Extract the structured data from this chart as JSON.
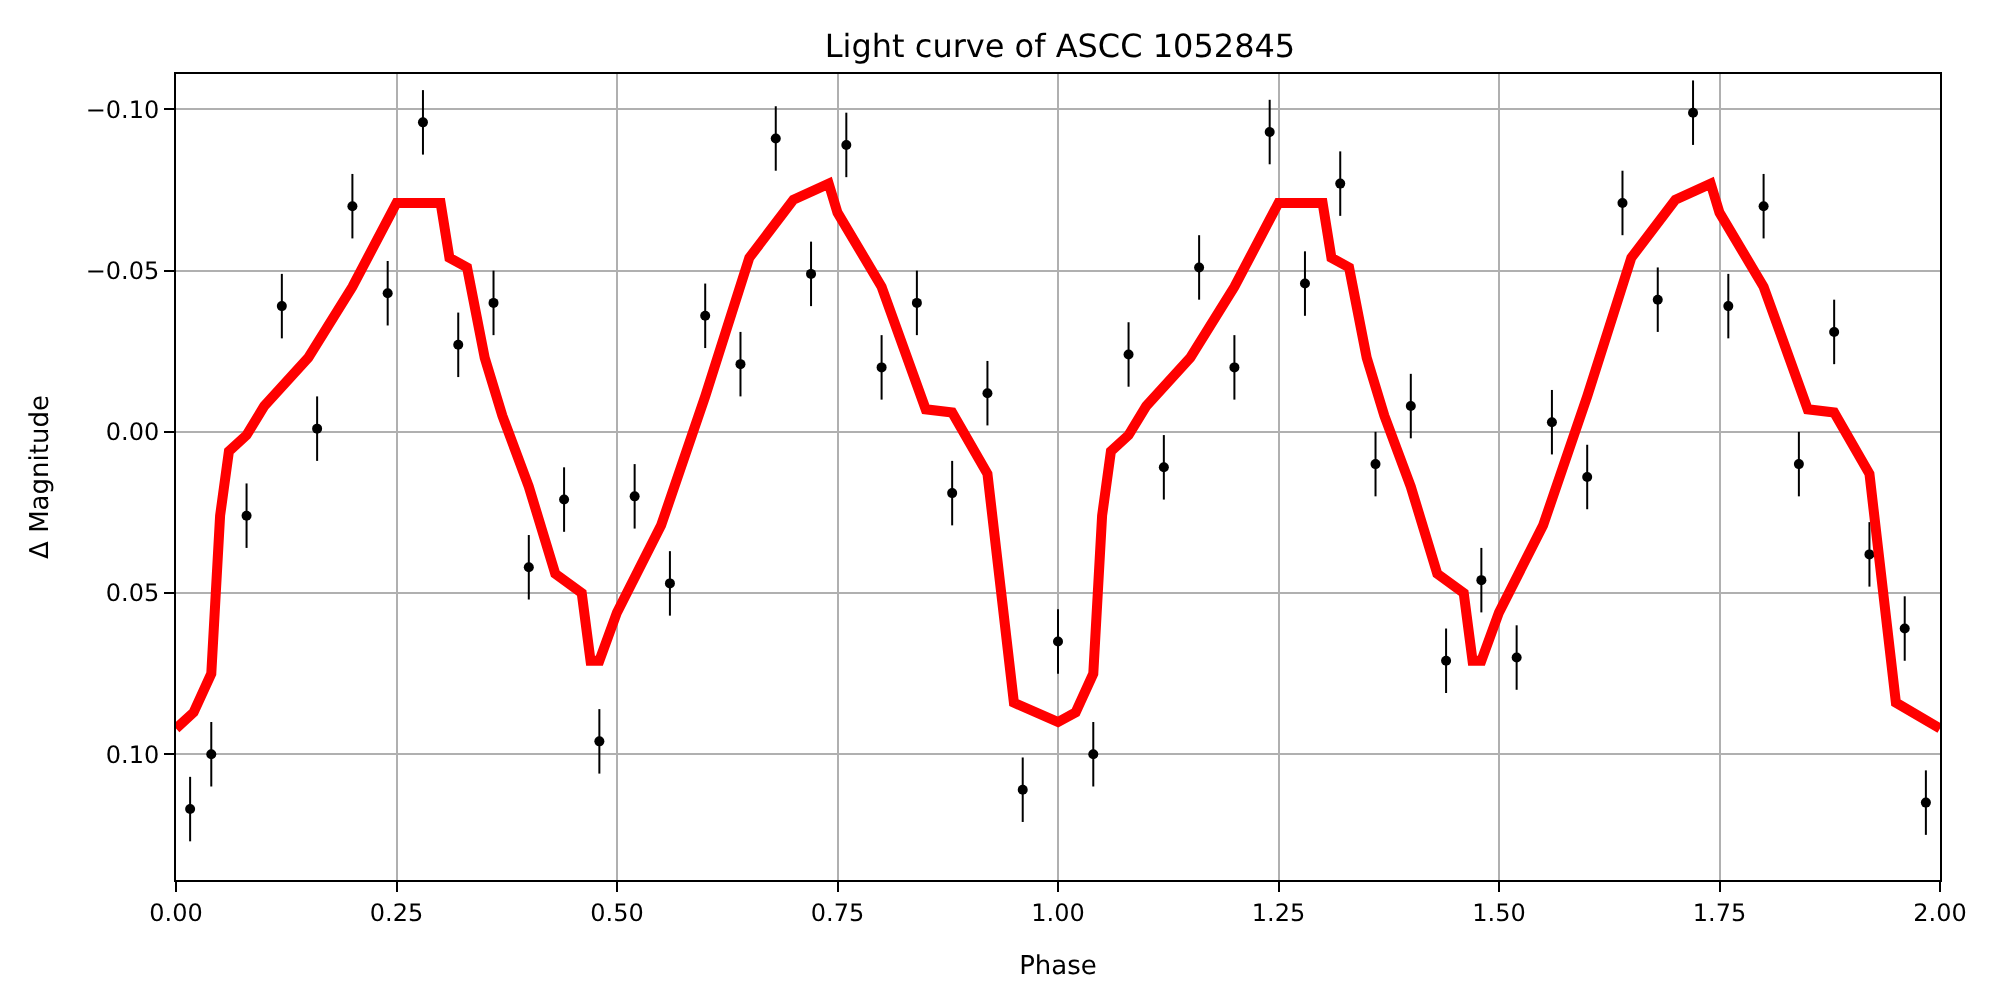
{
  "chart_data": {
    "type": "scatter",
    "title": "Light curve of ASCC 1052845",
    "xlabel": "Phase",
    "ylabel": "Δ Magnitude",
    "xlim": [
      0,
      2
    ],
    "ylim": [
      0.139,
      -0.111
    ],
    "xticks": [
      {
        "value": 0,
        "label": "0.00"
      },
      {
        "value": 0.25,
        "label": "0.25"
      },
      {
        "value": 0.5,
        "label": "0.50"
      },
      {
        "value": 0.75,
        "label": "0.75"
      },
      {
        "value": 1,
        "label": "1.00"
      },
      {
        "value": 1.25,
        "label": "1.25"
      },
      {
        "value": 1.5,
        "label": "1.50"
      },
      {
        "value": 1.75,
        "label": "1.75"
      },
      {
        "value": 2,
        "label": "2.00"
      }
    ],
    "yticks": [
      {
        "value": -0.1,
        "label": "−0.10"
      },
      {
        "value": -0.05,
        "label": "−0.05"
      },
      {
        "value": 0,
        "label": "0.00"
      },
      {
        "value": 0.05,
        "label": "0.05"
      },
      {
        "value": 0.1,
        "label": "0.10"
      }
    ],
    "grid": true,
    "series": [
      {
        "color": "#000000",
        "marker": "circle",
        "x": [
          0.016,
          0.04,
          0.08,
          0.12,
          0.16,
          0.2,
          0.24,
          0.28,
          0.32,
          0.36,
          0.4,
          0.44,
          0.48,
          0.52,
          0.56,
          0.6,
          0.64,
          0.68,
          0.72,
          0.76,
          0.8,
          0.84,
          0.88,
          0.92,
          0.96,
          1.0,
          1.04,
          1.08,
          1.12,
          1.16,
          1.2,
          1.24,
          1.28,
          1.32,
          1.36,
          1.4,
          1.44,
          1.48,
          1.52,
          1.56,
          1.6,
          1.64,
          1.68,
          1.72,
          1.76,
          1.8,
          1.84,
          1.88,
          1.92,
          1.96,
          1.984
        ],
        "values": [
          0.117,
          0.1,
          0.026,
          -0.039,
          -0.001,
          -0.07,
          -0.043,
          -0.096,
          -0.027,
          -0.04,
          0.042,
          0.021,
          0.096,
          0.02,
          0.047,
          -0.036,
          -0.021,
          -0.091,
          -0.049,
          -0.089,
          -0.02,
          -0.04,
          0.019,
          -0.012,
          0.111,
          0.065,
          0.1,
          -0.024,
          0.011,
          -0.051,
          -0.02,
          -0.093,
          -0.046,
          -0.077,
          0.01,
          -0.008,
          0.071,
          0.046,
          0.07,
          -0.003,
          0.014,
          -0.071,
          -0.041,
          -0.099,
          -0.039,
          -0.07,
          0.01,
          -0.031,
          0.038,
          0.061,
          0.115
        ],
        "errors": [
          0.01,
          0.01,
          0.01,
          0.01,
          0.01,
          0.01,
          0.01,
          0.01,
          0.01,
          0.01,
          0.01,
          0.01,
          0.01,
          0.01,
          0.01,
          0.01,
          0.01,
          0.01,
          0.01,
          0.01,
          0.01,
          0.01,
          0.01,
          0.01,
          0.01,
          0.01,
          0.01,
          0.01,
          0.01,
          0.01,
          0.01,
          0.01,
          0.01,
          0.01,
          0.01,
          0.01,
          0.01,
          0.01,
          0.01,
          0.01,
          0.01,
          0.01,
          0.01,
          0.01,
          0.01,
          0.01,
          0.01,
          0.01,
          0.01,
          0.01,
          0.01
        ]
      },
      {
        "type": "line",
        "color": "#ff0000",
        "marker": "none",
        "line_style": "solid",
        "x": [
          0,
          0.02,
          0.04,
          0.05,
          0.06,
          0.08,
          0.1,
          0.15,
          0.2,
          0.25,
          0.3,
          0.31,
          0.33,
          0.35,
          0.37,
          0.4,
          0.43,
          0.46,
          0.47,
          0.48,
          0.5,
          0.55,
          0.6,
          0.65,
          0.7,
          0.74,
          0.75,
          0.8,
          0.85,
          0.88,
          0.92,
          0.95,
          1.0,
          1.02,
          1.04,
          1.05,
          1.06,
          1.08,
          1.1,
          1.15,
          1.2,
          1.25,
          1.3,
          1.31,
          1.33,
          1.35,
          1.37,
          1.4,
          1.43,
          1.46,
          1.47,
          1.48,
          1.5,
          1.55,
          1.6,
          1.65,
          1.7,
          1.74,
          1.75,
          1.8,
          1.85,
          1.88,
          1.92,
          1.95,
          2.0
        ],
        "values": [
          0.092,
          0.087,
          0.075,
          0.026,
          0.006,
          0.001,
          -0.008,
          -0.023,
          -0.045,
          -0.071,
          -0.071,
          -0.054,
          -0.051,
          -0.023,
          -0.005,
          0.017,
          0.044,
          0.05,
          0.071,
          0.071,
          0.056,
          0.029,
          -0.011,
          -0.054,
          -0.072,
          -0.077,
          -0.068,
          -0.045,
          -0.007,
          -0.006,
          0.013,
          0.084,
          0.09,
          0.087,
          0.075,
          0.026,
          0.006,
          0.001,
          -0.008,
          -0.023,
          -0.045,
          -0.071,
          -0.071,
          -0.054,
          -0.051,
          -0.023,
          -0.005,
          0.017,
          0.044,
          0.05,
          0.071,
          0.071,
          0.056,
          0.029,
          -0.011,
          -0.054,
          -0.072,
          -0.077,
          -0.068,
          -0.045,
          -0.007,
          -0.006,
          0.013,
          0.084,
          0.092
        ]
      }
    ]
  }
}
